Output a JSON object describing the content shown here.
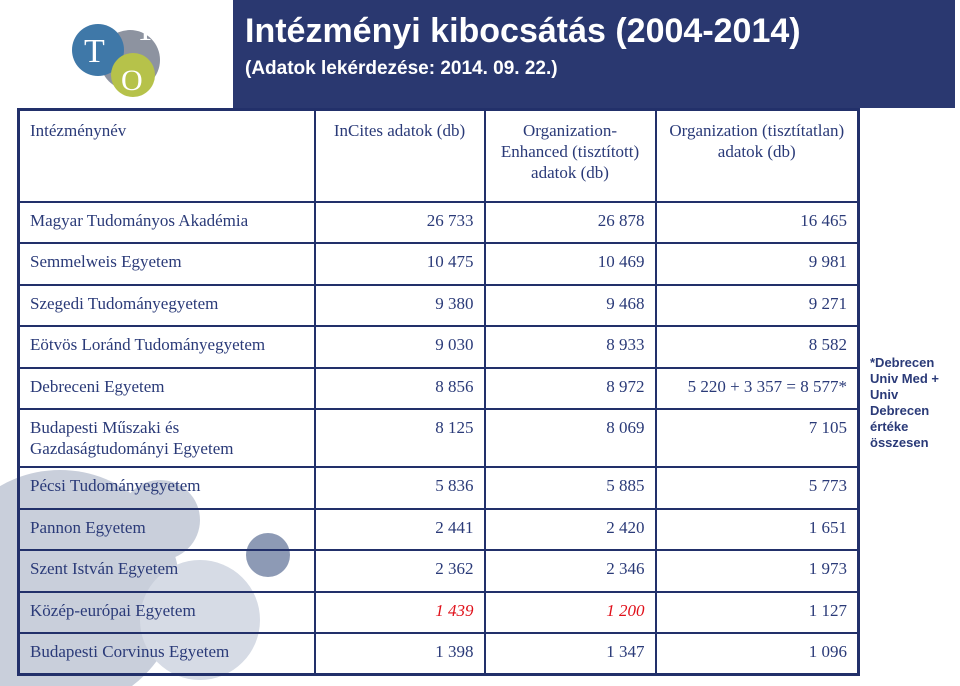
{
  "header": {
    "title": "Intézményi kibocsátás (2004-2014)",
    "subtitle": "(Adatok lekérdezése: 2014. 09. 22.)"
  },
  "logo": {
    "letters": [
      "T",
      "T",
      "O"
    ]
  },
  "table": {
    "columns": [
      "Intézménynév",
      "InCites adatok (db)",
      "Organization-Enhanced (tisztított) adatok (db)",
      "Organization (tisztítatlan) adatok (db)"
    ],
    "rows": [
      [
        "Magyar Tudományos Akadémia",
        "26 733",
        "26 878",
        "16 465"
      ],
      [
        "Semmelweis Egyetem",
        "10 475",
        "10 469",
        "9 981"
      ],
      [
        "Szegedi Tudományegyetem",
        "9 380",
        "9 468",
        "9 271"
      ],
      [
        "Eötvös Loránd Tudományegyetem",
        "9 030",
        "8 933",
        "8 582"
      ],
      [
        "Debreceni Egyetem",
        "8 856",
        "8 972",
        "5 220 + 3 357 = 8 577*"
      ],
      [
        "Budapesti Műszaki és Gazdaságtudományi Egyetem",
        "8 125",
        "8 069",
        "7 105"
      ],
      [
        "Pécsi Tudományegyetem",
        "5 836",
        "5 885",
        "5 773"
      ],
      [
        "Pannon Egyetem",
        "2 441",
        "2 420",
        "1 651"
      ],
      [
        "Szent István Egyetem",
        "2 362",
        "2 346",
        "1 973"
      ],
      [
        "Közép-európai Egyetem",
        "1 439",
        "1 200",
        "1 127"
      ],
      [
        "Budapesti Corvinus Egyetem",
        "1 398",
        "1 347",
        "1 096"
      ]
    ],
    "highlight_cells": [
      [
        9,
        1
      ],
      [
        9,
        2
      ]
    ],
    "highlight_color": "#e0101a"
  },
  "note": "*Debrecen Univ Med + Univ Debrecen értéke összesen"
}
